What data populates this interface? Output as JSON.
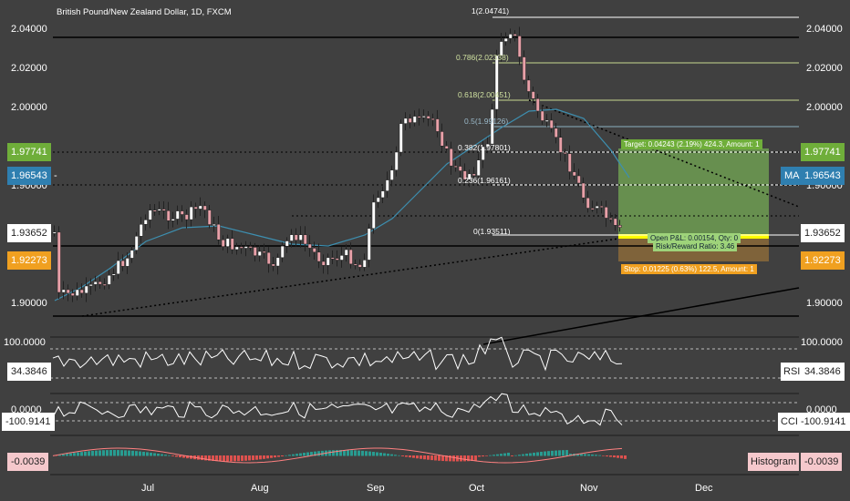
{
  "symbol_title": "British Pound/New Zealand Dollar, 1D, FXCM",
  "price_axis": {
    "ticks": [
      "2.04000",
      "2.02000",
      "2.00000",
      "1.90000",
      "1.90000"
    ],
    "partial_ticks": [
      "1.9400",
      "1.9400"
    ]
  },
  "tags": {
    "target_price": "1.97741",
    "ma_price": "1.96543",
    "ma_name": "MA",
    "last_price": "1.93652",
    "stop_price": "1.92273"
  },
  "fib_labels": [
    "1(2.04741)",
    "0.786(2.02338)",
    "0.618(2.00451)",
    "0.5(1.99126)",
    "0.382(1.97801)",
    "0.236(1.96161)",
    "0(1.93511)"
  ],
  "position": {
    "target_text": "Target: 0.04243 (2.19%) 424.3, Amount: 1",
    "open_pl_text": "Open P&L: 0.00154, Qty: 0",
    "rr_text": "Risk/Reward Ratio: 3.46",
    "stop_text": "Stop: 0.01225 (0.63%) 122.5, Amount: 1"
  },
  "rsi": {
    "name": "RSI",
    "value": "34.3846",
    "top_tick": "100.0000"
  },
  "cci": {
    "name": "CCI",
    "value": "-100.9141",
    "top_tick": "0.0000"
  },
  "macd": {
    "name": "Histogram",
    "value": "-0.0039"
  },
  "months": [
    "Jul",
    "Aug",
    "Sep",
    "Oct",
    "Nov",
    "Dec"
  ],
  "colors": {
    "background": "#404040",
    "bull": "#ffffff",
    "bear": "#e8a0a8",
    "profit_zone": "#6e9e52",
    "loss_zone": "#8b6a3a",
    "ma": "#3d8fb0",
    "target_tag": "#6fae3a",
    "ma_tag": "#2f7fb0",
    "stop_tag": "#f0a020",
    "last_tag": "#ffffff"
  },
  "icons": [
    "scale-tag",
    "trend-line",
    "fib-retracement",
    "position-tool"
  ]
}
